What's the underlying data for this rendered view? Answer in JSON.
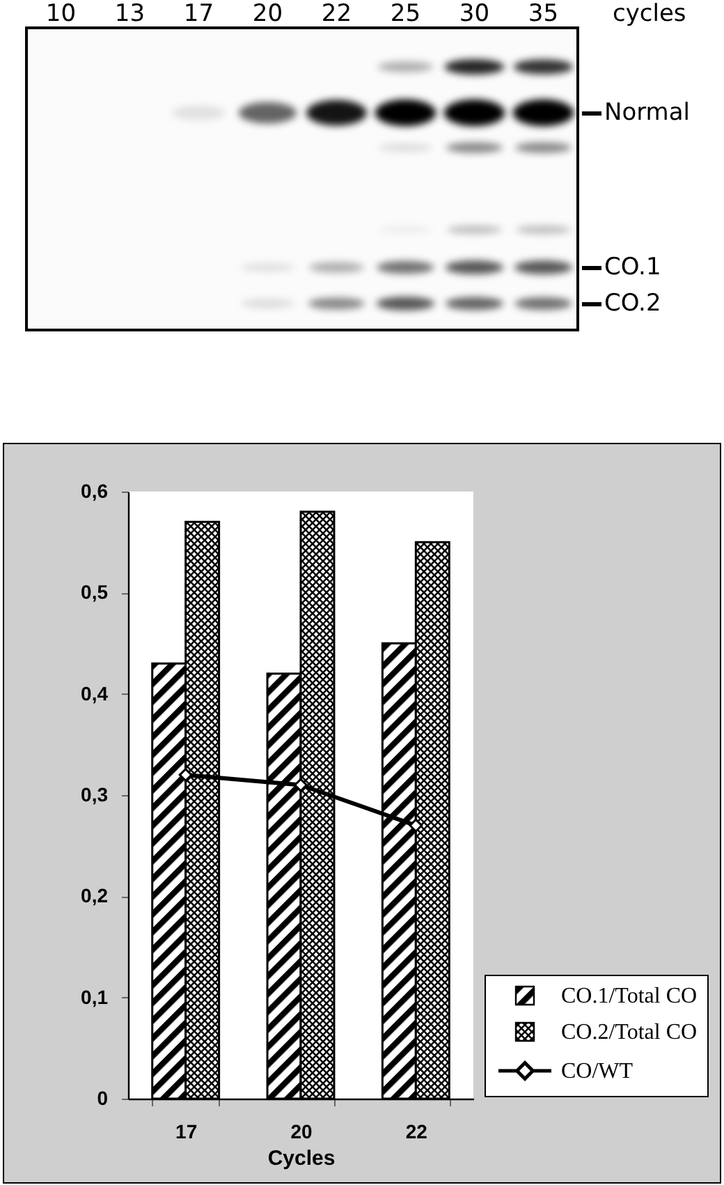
{
  "chart_data": [
    {
      "type": "other",
      "categories": [
        "10",
        "13",
        "17",
        "20",
        "22",
        "25",
        "30",
        "35"
      ],
      "xlabel": "cycles",
      "annotations": [
        "Normal",
        "CO.1",
        "CO.2"
      ]
    },
    {
      "type": "bar",
      "categories": [
        "17",
        "20",
        "22"
      ],
      "xlabel": "Cycles",
      "ylim": [
        0,
        0.6
      ],
      "yticks": [
        0,
        {
          "value": 0.1,
          "label": "0,1"
        },
        {
          "value": 0.2,
          "label": "0,2"
        },
        {
          "value": 0.3,
          "label": "0,3"
        },
        {
          "value": 0.4,
          "label": "0,4"
        },
        {
          "value": 0.5,
          "label": "0,5"
        },
        {
          "value": 0.6,
          "label": "0,6"
        }
      ],
      "series": [
        {
          "name": "CO.1/Total CO",
          "color": "#000000",
          "values": [
            0.43,
            0.42,
            0.45
          ]
        },
        {
          "name": "CO.2/Total CO",
          "color": "#000000",
          "values": [
            0.57,
            0.58,
            0.55
          ]
        },
        {
          "name": "CO/WT",
          "type": "line",
          "color": "#000000",
          "values": [
            0.32,
            0.31,
            0.27
          ]
        }
      ],
      "marker": "diamond",
      "legend": "bottom right"
    }
  ]
}
